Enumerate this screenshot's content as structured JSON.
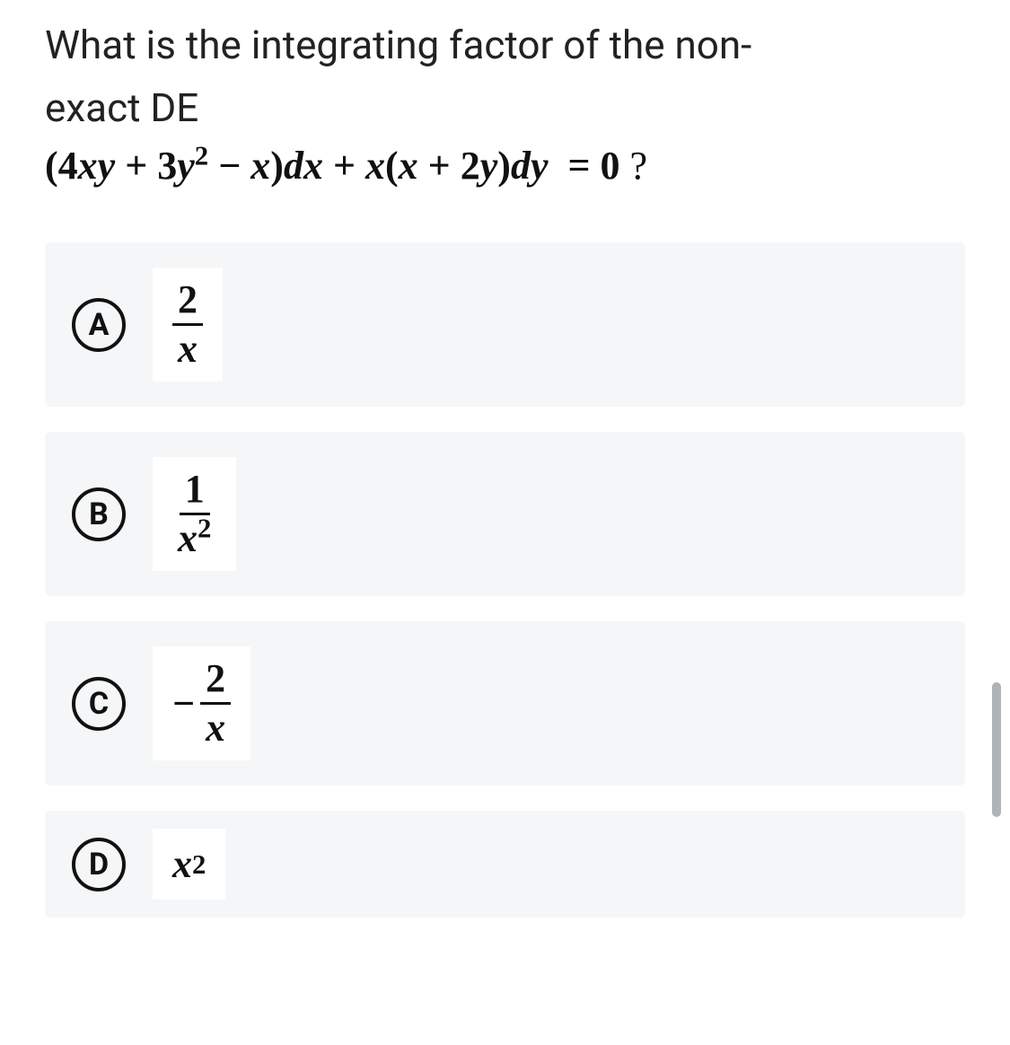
{
  "question": {
    "line1": "What is the integrating factor of the non-",
    "line2": "exact DE",
    "equation_html": "<span class='paren'>(</span><span class='num'>4</span>xy<span class='op'>&nbsp;+&nbsp;</span><span class='num'>3</span>y<sup class='num'>2</sup><span class='op'>&nbsp;&minus;&nbsp;</span>x<span class='paren'>)</span>dx<span class='op'>&nbsp;+&nbsp;</span>x<span class='paren'>(</span>x<span class='op'>&nbsp;+&nbsp;</span><span class='num'>2</span>y<span class='paren'>)</span>dy&nbsp;<span class='eq'>&nbsp;=&nbsp;0</span>&nbsp;<span class='qm'>?</span>"
  },
  "options": {
    "A": {
      "letter": "A",
      "display_html": "<span class='fraction'><span class='frac-num normal'>2</span><span class='frac-den'>x</span></span>"
    },
    "B": {
      "letter": "B",
      "display_html": "<span class='fraction'><span class='frac-num normal'>1</span><span class='frac-den'>x<sup class='normal'>2</sup></span></span>"
    },
    "C": {
      "letter": "C",
      "display_html": "<span class='minus'>&minus;</span><span class='fraction'><span class='frac-num normal'>2</span><span class='frac-den'>x</span></span>"
    },
    "D": {
      "letter": "D",
      "display_html": "x<sup class='normal'>2</sup>"
    }
  },
  "styles": {
    "background_color": "#ffffff",
    "option_background": "#f5f6f7",
    "option_content_background": "#ffffff",
    "text_color": "#222222",
    "math_color": "#111111",
    "circle_border_color": "#111111",
    "circle_border_width": 4,
    "question_fontsize": 44,
    "equation_fontsize": 44,
    "option_fontsize": 44,
    "letter_fontsize": 34,
    "scroll_indicator_color": "#b0b3b8"
  }
}
